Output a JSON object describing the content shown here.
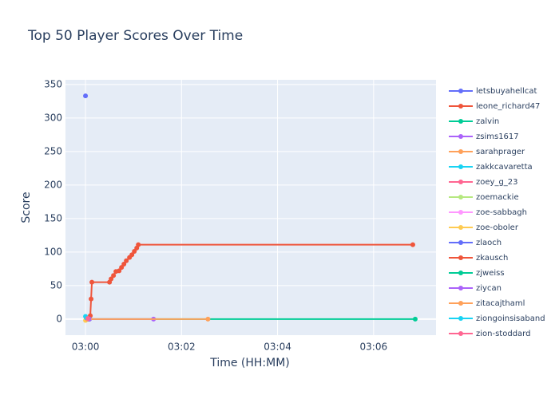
{
  "chart_data": {
    "type": "line",
    "title": "Top 50 Player Scores Over Time",
    "x_label": "Time (HH:MM)",
    "y_label": "Score",
    "xlim": [
      "02:59:35",
      "03:07:18"
    ],
    "xticks": [
      "03:00",
      "03:02",
      "03:04",
      "03:06"
    ],
    "ylim": [
      -24,
      357
    ],
    "yticks": [
      0,
      50,
      100,
      150,
      200,
      250,
      300,
      350
    ],
    "grid": true,
    "series": [
      {
        "name": "letsbuyahellcat",
        "color": "#636efa",
        "x": [
          "03:00:00"
        ],
        "values": [
          333
        ]
      },
      {
        "name": "leone_richard47",
        "color": "#EF553B",
        "x": [
          "03:00:06",
          "03:00:07",
          "03:00:08",
          "03:00:30",
          "03:00:32",
          "03:00:35",
          "03:00:38",
          "03:00:42",
          "03:00:45",
          "03:00:48",
          "03:00:51",
          "03:00:55",
          "03:00:58",
          "03:01:01",
          "03:01:04",
          "03:01:06",
          "03:06:49"
        ],
        "values": [
          5,
          30,
          55,
          55,
          60,
          65,
          71,
          72,
          77,
          82,
          87,
          92,
          96,
          101,
          106,
          111,
          111
        ]
      },
      {
        "name": "zalvin",
        "color": "#00cc96",
        "x": [
          "03:00:05",
          "03:06:52"
        ],
        "values": [
          0,
          0
        ]
      },
      {
        "name": "zsims1617",
        "color": "#ab63fa",
        "x": [
          "03:00:05",
          "03:01:25"
        ],
        "values": [
          0,
          0
        ]
      },
      {
        "name": "sarahprager",
        "color": "#FFA15A",
        "x": [
          "03:00:01",
          "03:02:33"
        ],
        "values": [
          0,
          0
        ]
      },
      {
        "name": "zakkcavaretta",
        "color": "#19d3f3",
        "x": [
          "03:00:00"
        ],
        "values": [
          4
        ]
      },
      {
        "name": "zoey_g_23",
        "color": "#FF6692",
        "x": [
          "03:00:02"
        ],
        "values": [
          1
        ]
      },
      {
        "name": "zoemackie",
        "color": "#B6E880",
        "x": [
          "03:00:01"
        ],
        "values": [
          0
        ]
      },
      {
        "name": "zoe-sabbagh",
        "color": "#FF97FF",
        "x": [
          "03:00:02"
        ],
        "values": [
          0
        ]
      },
      {
        "name": "zoe-oboler",
        "color": "#FECB52",
        "x": [
          "03:00:00"
        ],
        "values": [
          -2
        ]
      },
      {
        "name": "zlaoch",
        "color": "#636efa",
        "x": [
          "03:00:04"
        ],
        "values": [
          0
        ]
      },
      {
        "name": "zkausch",
        "color": "#EF553B",
        "x": [
          "03:00:03"
        ],
        "values": [
          0
        ]
      },
      {
        "name": "zjweiss",
        "color": "#00cc96",
        "x": [
          "03:00:03"
        ],
        "values": [
          0
        ]
      },
      {
        "name": "ziycan",
        "color": "#ab63fa",
        "x": [
          "03:00:04"
        ],
        "values": [
          0
        ]
      },
      {
        "name": "zitacajthaml",
        "color": "#FFA15A",
        "x": [
          "03:00:02"
        ],
        "values": [
          0
        ]
      },
      {
        "name": "ziongoinsisaband",
        "color": "#19d3f3",
        "x": [
          "03:00:01"
        ],
        "values": [
          2
        ]
      },
      {
        "name": "zion-stoddard",
        "color": "#FF6692",
        "x": [
          "03:00:03"
        ],
        "values": [
          1
        ]
      }
    ]
  }
}
